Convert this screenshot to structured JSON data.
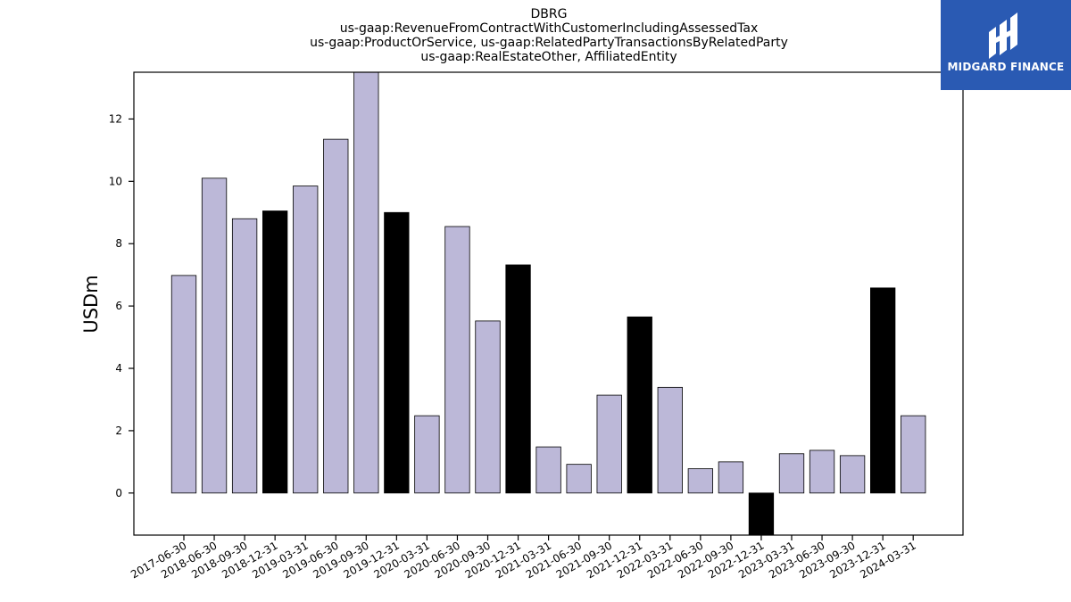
{
  "logo": {
    "text": "MIDGARD FINANCE",
    "icon": "midgard-logo-icon",
    "background": "#2a5ab3"
  },
  "chart_data": {
    "type": "bar",
    "title_lines": [
      "DBRG",
      "us-gaap:RevenueFromContractWithCustomerIncludingAssessedTax",
      "us-gaap:ProductOrService, us-gaap:RelatedPartyTransactionsByRelatedParty",
      "us-gaap:RealEstateOther, AffiliatedEntity"
    ],
    "xlabel": "",
    "ylabel": "USDm",
    "ylim": [
      -1.35,
      13.5
    ],
    "yticks": [
      0,
      2,
      4,
      6,
      8,
      10,
      12
    ],
    "grid": false,
    "colors": {
      "quarterly": "#bcb8d8",
      "annual": "#000000",
      "edge": "#000000"
    },
    "categories": [
      "2017-06-30",
      "2018-06-30",
      "2018-09-30",
      "2018-12-31",
      "2019-03-31",
      "2019-06-30",
      "2019-09-30",
      "2019-12-31",
      "2020-03-31",
      "2020-06-30",
      "2020-09-30",
      "2020-12-31",
      "2021-03-31",
      "2021-06-30",
      "2021-09-30",
      "2021-12-31",
      "2022-03-31",
      "2022-06-30",
      "2022-09-30",
      "2022-12-31",
      "2023-03-31",
      "2023-06-30",
      "2023-09-30",
      "2023-12-31",
      "2024-03-31"
    ],
    "values": [
      6.98,
      10.1,
      8.8,
      9.05,
      9.85,
      11.35,
      13.9,
      9.0,
      2.48,
      8.55,
      5.52,
      7.32,
      1.48,
      0.92,
      3.14,
      5.65,
      3.39,
      0.78,
      1.0,
      -1.5,
      1.26,
      1.37,
      1.2,
      6.58,
      2.48
    ],
    "is_annual": [
      false,
      false,
      false,
      true,
      false,
      false,
      false,
      true,
      false,
      false,
      false,
      true,
      false,
      false,
      false,
      true,
      false,
      false,
      false,
      true,
      false,
      false,
      false,
      true,
      false
    ]
  }
}
